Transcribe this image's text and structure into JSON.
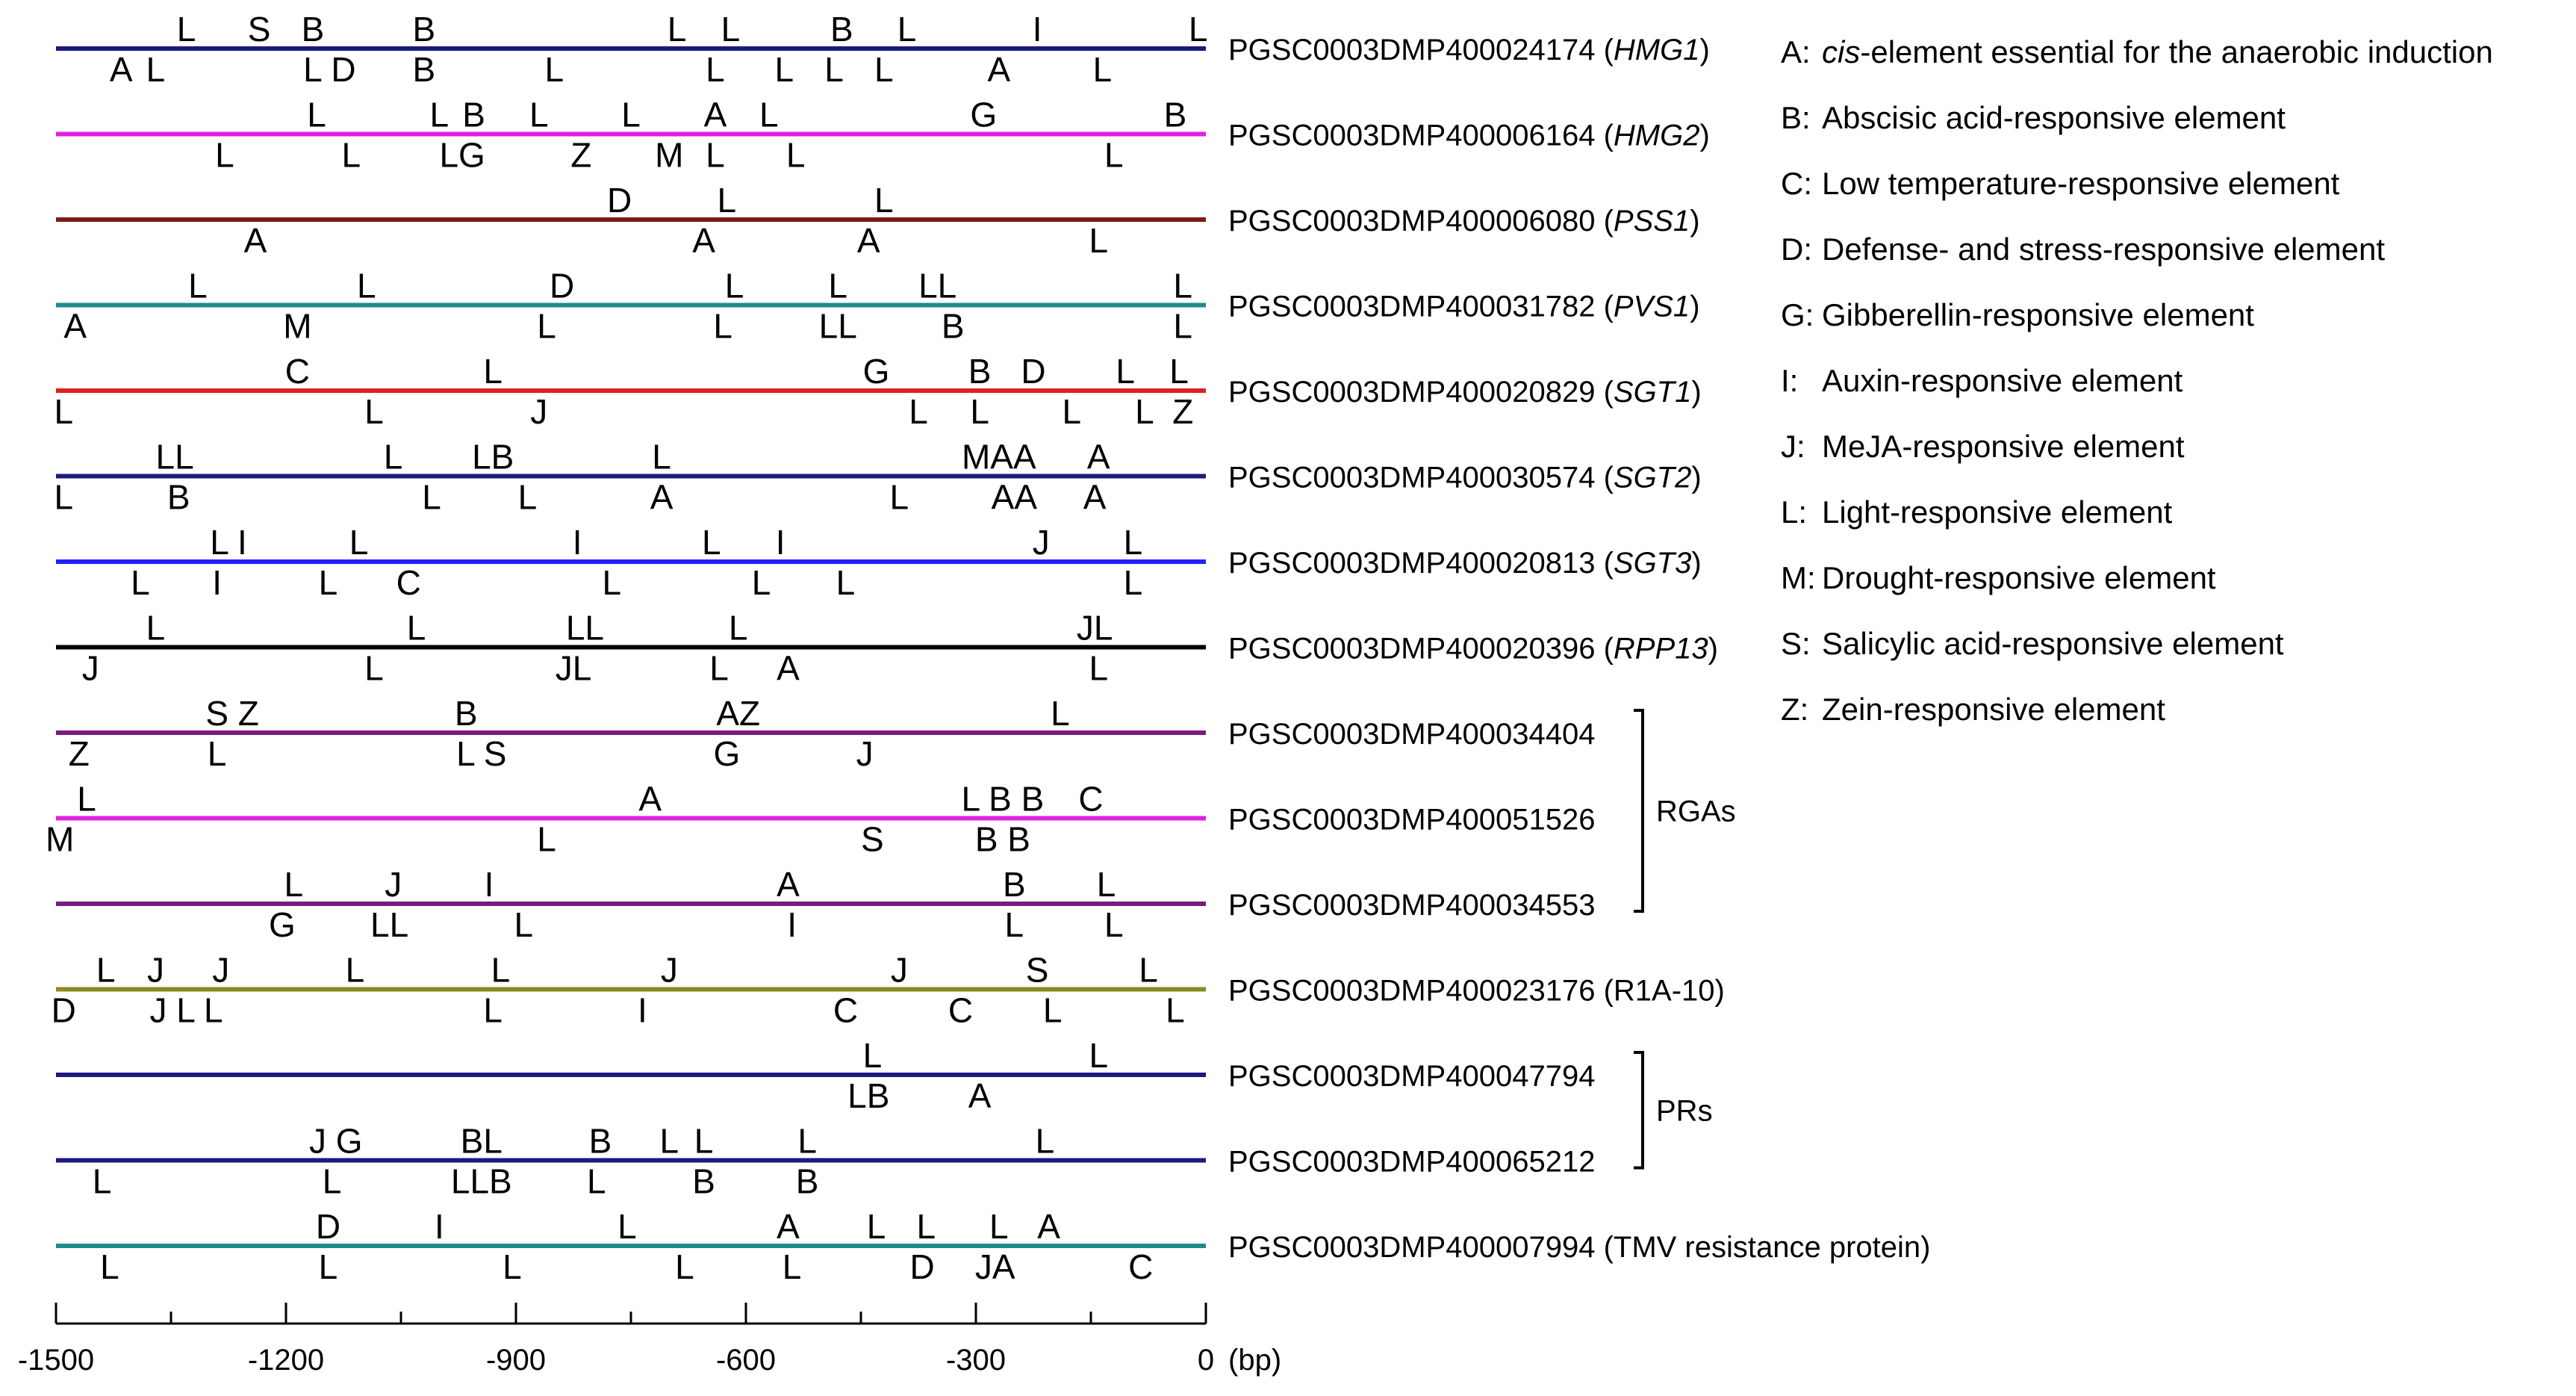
{
  "chart_data": {
    "type": "promoter-element-map",
    "x_range": [
      -1500,
      0
    ],
    "x_unit": "(bp)",
    "x_ticks": [
      -1500,
      -1200,
      -900,
      -600,
      -300,
      0
    ],
    "genes": [
      {
        "label": "PGSC0003DMP400024174",
        "note": "HMG1",
        "note_italic": true,
        "color": "#1a1a80",
        "above": [
          [
            -1330,
            "L"
          ],
          [
            -1235,
            "S"
          ],
          [
            -1165,
            "B"
          ],
          [
            -1020,
            "B"
          ],
          [
            -690,
            "L"
          ],
          [
            -620,
            "L"
          ],
          [
            -475,
            "B"
          ],
          [
            -390,
            "L"
          ],
          [
            -220,
            "I"
          ],
          [
            -10,
            "L"
          ]
        ],
        "below": [
          [
            -1415,
            "A"
          ],
          [
            -1370,
            "L"
          ],
          [
            -1165,
            "L"
          ],
          [
            -1125,
            "D"
          ],
          [
            -1020,
            "B"
          ],
          [
            -850,
            "L"
          ],
          [
            -640,
            "L"
          ],
          [
            -550,
            "L"
          ],
          [
            -485,
            "L"
          ],
          [
            -420,
            "L"
          ],
          [
            -270,
            "A"
          ],
          [
            -135,
            "L"
          ]
        ]
      },
      {
        "label": "PGSC0003DMP400006164",
        "note": "HMG2",
        "note_italic": true,
        "color": "#e020e0",
        "above": [
          [
            -1160,
            "L"
          ],
          [
            -1000,
            "L"
          ],
          [
            -955,
            "B"
          ],
          [
            -870,
            "L"
          ],
          [
            -750,
            "L"
          ],
          [
            -640,
            "A"
          ],
          [
            -570,
            "L"
          ],
          [
            -290,
            "G"
          ],
          [
            -40,
            "B"
          ]
        ],
        "below": [
          [
            -1280,
            "L"
          ],
          [
            -1115,
            "L"
          ],
          [
            -970,
            "LG"
          ],
          [
            -815,
            "Z"
          ],
          [
            -700,
            "M"
          ],
          [
            -640,
            "L"
          ],
          [
            -535,
            "L"
          ],
          [
            -120,
            "L"
          ]
        ]
      },
      {
        "label": "PGSC0003DMP400006080",
        "note": "PSS1",
        "note_italic": true,
        "color": "#7a1a1a",
        "above": [
          [
            -765,
            "D"
          ],
          [
            -625,
            "L"
          ],
          [
            -420,
            "L"
          ]
        ],
        "below": [
          [
            -1240,
            "A"
          ],
          [
            -655,
            "A"
          ],
          [
            -440,
            "A"
          ],
          [
            -140,
            "L"
          ]
        ]
      },
      {
        "label": "PGSC0003DMP400031782",
        "note": "PVS1",
        "note_italic": true,
        "color": "#208a8a",
        "above": [
          [
            -1315,
            "L"
          ],
          [
            -1095,
            "L"
          ],
          [
            -840,
            "D"
          ],
          [
            -615,
            "L"
          ],
          [
            -480,
            "L"
          ],
          [
            -350,
            "LL"
          ],
          [
            -30,
            "L"
          ]
        ],
        "below": [
          [
            -1475,
            "A"
          ],
          [
            -1185,
            "M"
          ],
          [
            -860,
            "L"
          ],
          [
            -630,
            "L"
          ],
          [
            -480,
            "LL"
          ],
          [
            -330,
            "B"
          ],
          [
            -30,
            "L"
          ]
        ]
      },
      {
        "label": "PGSC0003DMP400020829",
        "note": "SGT1",
        "note_italic": true,
        "color": "#e02020",
        "above": [
          [
            -1185,
            "C"
          ],
          [
            -930,
            "L"
          ],
          [
            -430,
            "G"
          ],
          [
            -295,
            "B"
          ],
          [
            -225,
            "D"
          ],
          [
            -105,
            "L"
          ],
          [
            -35,
            "L"
          ]
        ],
        "below": [
          [
            -1490,
            "L"
          ],
          [
            -1085,
            "L"
          ],
          [
            -870,
            "J"
          ],
          [
            -375,
            "L"
          ],
          [
            -295,
            "L"
          ],
          [
            -175,
            "L"
          ],
          [
            -80,
            "L"
          ],
          [
            -30,
            "Z"
          ]
        ]
      },
      {
        "label": "PGSC0003DMP400030574",
        "note": "SGT2",
        "note_italic": true,
        "color": "#1a1a80",
        "above": [
          [
            -1345,
            "LL"
          ],
          [
            -1060,
            "L"
          ],
          [
            -930,
            "LB"
          ],
          [
            -710,
            "L"
          ],
          [
            -270,
            "MAA"
          ],
          [
            -140,
            "A"
          ]
        ],
        "below": [
          [
            -1490,
            "L"
          ],
          [
            -1340,
            "B"
          ],
          [
            -1010,
            "L"
          ],
          [
            -885,
            "L"
          ],
          [
            -710,
            "A"
          ],
          [
            -400,
            "L"
          ],
          [
            -250,
            "AA"
          ],
          [
            -145,
            "A"
          ]
        ]
      },
      {
        "label": "PGSC0003DMP400020813",
        "note": "SGT3",
        "note_italic": true,
        "color": "#2020ff",
        "above": [
          [
            -1275,
            "L I"
          ],
          [
            -1105,
            "L"
          ],
          [
            -820,
            "I"
          ],
          [
            -645,
            "L"
          ],
          [
            -555,
            "I"
          ],
          [
            -215,
            "J"
          ],
          [
            -95,
            "L"
          ]
        ],
        "below": [
          [
            -1390,
            "L"
          ],
          [
            -1290,
            "I"
          ],
          [
            -1145,
            "L"
          ],
          [
            -1040,
            "C"
          ],
          [
            -775,
            "L"
          ],
          [
            -580,
            "L"
          ],
          [
            -470,
            "L"
          ],
          [
            -95,
            "L"
          ]
        ]
      },
      {
        "label": "PGSC0003DMP400020396",
        "note": "RPP13",
        "note_italic": true,
        "color": "#000000",
        "above": [
          [
            -1370,
            "L"
          ],
          [
            -1030,
            "L"
          ],
          [
            -810,
            "LL"
          ],
          [
            -610,
            "L"
          ],
          [
            -145,
            "JL"
          ]
        ],
        "below": [
          [
            -1455,
            "J"
          ],
          [
            -1085,
            "L"
          ],
          [
            -825,
            "JL"
          ],
          [
            -635,
            "L"
          ],
          [
            -545,
            "A"
          ],
          [
            -140,
            "L"
          ]
        ]
      },
      {
        "label": "PGSC0003DMP400034404",
        "note": "",
        "note_italic": false,
        "color": "#7a1a80",
        "above": [
          [
            -1270,
            "S Z"
          ],
          [
            -965,
            "B"
          ],
          [
            -610,
            "AZ"
          ],
          [
            -190,
            "L"
          ]
        ],
        "below": [
          [
            -1470,
            "Z"
          ],
          [
            -1290,
            "L"
          ],
          [
            -945,
            "L S"
          ],
          [
            -625,
            "G"
          ],
          [
            -445,
            "J"
          ]
        ]
      },
      {
        "label": "PGSC0003DMP400051526",
        "note": "",
        "note_italic": false,
        "color": "#e020e0",
        "above": [
          [
            -1460,
            "L"
          ],
          [
            -725,
            "A"
          ],
          [
            -265,
            "L B B"
          ],
          [
            -150,
            "C"
          ]
        ],
        "below": [
          [
            -1495,
            "M"
          ],
          [
            -860,
            "L"
          ],
          [
            -435,
            "S"
          ],
          [
            -265,
            "B B"
          ]
        ]
      },
      {
        "label": "PGSC0003DMP400034553",
        "note": "",
        "note_italic": false,
        "color": "#7a1a80",
        "above": [
          [
            -1190,
            "L"
          ],
          [
            -1060,
            "J"
          ],
          [
            -935,
            "I"
          ],
          [
            -545,
            "A"
          ],
          [
            -250,
            "B"
          ],
          [
            -130,
            "L"
          ]
        ],
        "below": [
          [
            -1205,
            "G"
          ],
          [
            -1065,
            "LL"
          ],
          [
            -890,
            "L"
          ],
          [
            -540,
            "I"
          ],
          [
            -250,
            "L"
          ],
          [
            -120,
            "L"
          ]
        ]
      },
      {
        "label": "PGSC0003DMP400023176",
        "note": "(R1A-10)",
        "note_italic": false,
        "color": "#8a8a20",
        "above": [
          [
            -1435,
            "L"
          ],
          [
            -1370,
            "J"
          ],
          [
            -1285,
            "J"
          ],
          [
            -1110,
            "L"
          ],
          [
            -920,
            "L"
          ],
          [
            -700,
            "J"
          ],
          [
            -400,
            "J"
          ],
          [
            -220,
            "S"
          ],
          [
            -75,
            "L"
          ]
        ],
        "below": [
          [
            -1490,
            "D"
          ],
          [
            -1330,
            "J L L"
          ],
          [
            -930,
            "L"
          ],
          [
            -735,
            "I"
          ],
          [
            -470,
            "C"
          ],
          [
            -320,
            "C"
          ],
          [
            -200,
            "L"
          ],
          [
            -40,
            "L"
          ]
        ]
      },
      {
        "label": "PGSC0003DMP400047794",
        "note": "",
        "note_italic": false,
        "color": "#1a1a80",
        "above": [
          [
            -435,
            "L"
          ],
          [
            -140,
            "L"
          ]
        ],
        "below": [
          [
            -440,
            "LB"
          ],
          [
            -295,
            "A"
          ]
        ]
      },
      {
        "label": "PGSC0003DMP400065212",
        "note": "",
        "note_italic": false,
        "color": "#1a1a80",
        "above": [
          [
            -1135,
            "J G"
          ],
          [
            -945,
            "BL"
          ],
          [
            -790,
            "B"
          ],
          [
            -700,
            "L"
          ],
          [
            -655,
            "L"
          ],
          [
            -520,
            "L"
          ],
          [
            -210,
            "L"
          ]
        ],
        "below": [
          [
            -1440,
            "L"
          ],
          [
            -1140,
            "L"
          ],
          [
            -945,
            "LLB"
          ],
          [
            -795,
            "L"
          ],
          [
            -655,
            "B"
          ],
          [
            -520,
            "B"
          ]
        ]
      },
      {
        "label": "PGSC0003DMP400007994",
        "note": "(TMV resistance protein)",
        "note_italic": false,
        "color": "#208a8a",
        "above": [
          [
            -1145,
            "D"
          ],
          [
            -1000,
            "I"
          ],
          [
            -755,
            "L"
          ],
          [
            -545,
            "A"
          ],
          [
            -430,
            "L"
          ],
          [
            -365,
            "L"
          ],
          [
            -270,
            "L"
          ],
          [
            -205,
            "A"
          ]
        ],
        "below": [
          [
            -1430,
            "L"
          ],
          [
            -1145,
            "L"
          ],
          [
            -905,
            "L"
          ],
          [
            -680,
            "L"
          ],
          [
            -540,
            "L"
          ],
          [
            -370,
            "D"
          ],
          [
            -275,
            "JA"
          ],
          [
            -85,
            "C"
          ]
        ]
      }
    ],
    "groups": [
      {
        "label": "RGAs",
        "from": 8,
        "to": 10
      },
      {
        "label": "PRs",
        "from": 12,
        "to": 13
      }
    ],
    "legend": [
      {
        "key": "A:",
        "text": "cis-element essential for the anaerobic induction"
      },
      {
        "key": "B:",
        "text": "Abscisic acid-responsive element"
      },
      {
        "key": "C:",
        "text": "Low temperature-responsive element"
      },
      {
        "key": "D:",
        "text": "Defense- and stress-responsive element"
      },
      {
        "key": "G:",
        "text": "Gibberellin-responsive element"
      },
      {
        "key": "I:",
        "text": "Auxin-responsive element"
      },
      {
        "key": "J:",
        "text": "MeJA-responsive element"
      },
      {
        "key": "L:",
        "text": "Light-responsive element"
      },
      {
        "key": "M:",
        "text": "Drought-responsive element"
      },
      {
        "key": "S:",
        "text": "Salicylic acid-responsive element"
      },
      {
        "key": "Z:",
        "text": "Zein-responsive element"
      }
    ]
  }
}
